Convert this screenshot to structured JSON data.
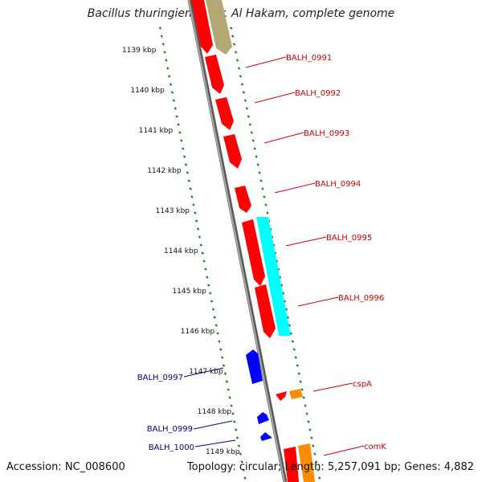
{
  "title": "Bacillus thuringiensis str. Al Hakam, complete genome",
  "accession": "Accession: NC_008600",
  "topology": "Topology: circular; Length: 5,257,091 bp; Genes: 4,882",
  "colors": {
    "background": "#ffffff",
    "backbone": "#808080",
    "ticks": "#137a13",
    "cds_forward": "#ff0000",
    "cds_reverse": "#0000ff",
    "rna": "#ff8c00",
    "feature_cyan": "#00ffff",
    "feature_olive": "#b3a874",
    "label_forward": "#cc0000",
    "label_reverse": "#00008b"
  },
  "kbp_ticks": [
    "1139 kbp",
    "1140 kbp",
    "1141 kbp",
    "1142 kbp",
    "1143 kbp",
    "1144 kbp",
    "1145 kbp",
    "1146 kbp",
    "1147 kbp",
    "1148 kbp",
    "1149 kbp"
  ],
  "gene_labels_forward": [
    "BALH_0991",
    "BALH_0992",
    "BALH_0993",
    "BALH_0994",
    "BALH_0995",
    "BALH_0996",
    "cspA",
    "comK"
  ],
  "gene_labels_reverse": [
    "BALH_0997",
    "BALH_0999",
    "BALH_1000"
  ]
}
